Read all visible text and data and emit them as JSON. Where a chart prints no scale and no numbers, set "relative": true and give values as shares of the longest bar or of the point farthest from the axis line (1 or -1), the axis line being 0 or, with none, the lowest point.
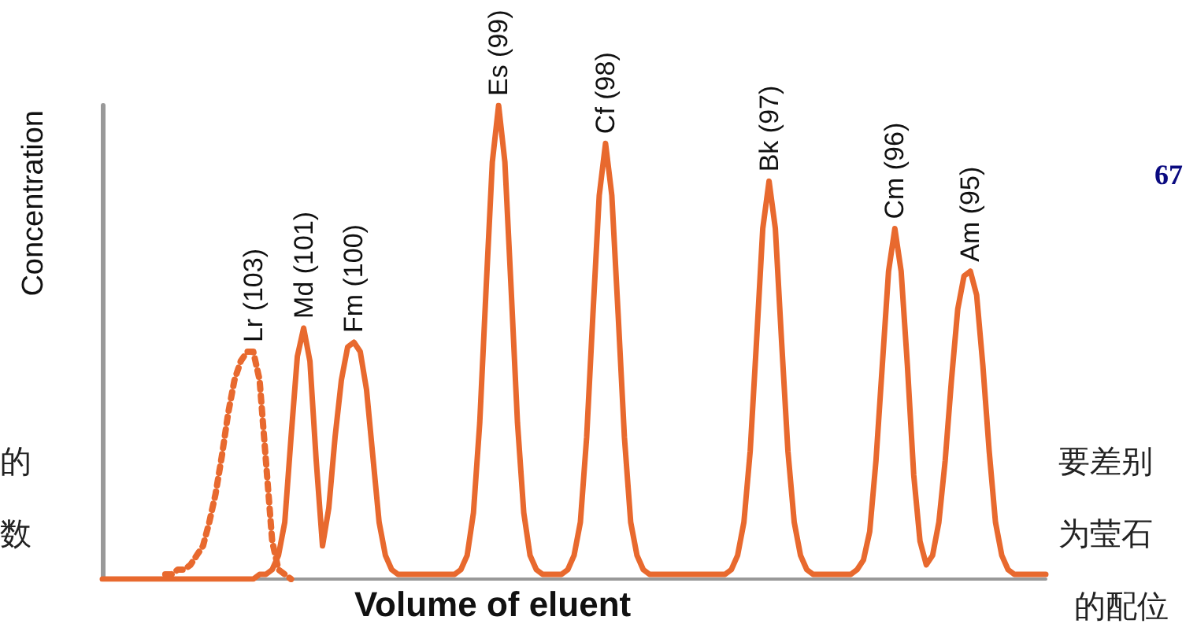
{
  "chart_data": {
    "type": "line",
    "relative": true,
    "xlabel": "Volume of eluent",
    "ylabel": "Concentration",
    "categories": [
      null,
      null,
      null,
      null,
      null,
      null,
      null,
      null,
      null,
      null,
      null,
      null,
      null,
      null,
      null,
      null,
      null,
      null,
      null,
      null,
      null,
      null,
      null,
      null,
      null,
      null,
      null,
      null,
      null,
      null,
      null,
      null,
      null,
      null,
      null,
      null,
      null,
      null,
      null,
      null,
      null,
      null,
      null,
      null,
      null,
      null,
      null,
      null,
      null,
      null,
      null,
      null,
      null,
      null,
      null,
      null,
      null,
      null,
      null,
      null,
      null,
      null,
      null,
      null,
      null,
      null,
      null,
      null,
      null,
      null,
      null,
      null,
      null,
      null,
      null,
      null,
      null,
      null,
      null,
      null,
      null,
      null,
      null,
      null,
      null,
      null,
      null,
      null,
      null,
      null,
      null,
      null,
      null,
      null,
      null,
      null,
      null,
      null,
      null,
      null,
      null,
      null,
      null,
      null,
      null,
      null,
      null,
      null,
      null,
      null,
      null,
      null,
      null,
      null,
      null,
      null,
      null,
      null,
      null,
      null,
      null,
      null,
      null,
      null,
      null,
      null,
      null,
      null,
      null,
      null,
      null,
      null,
      null,
      null,
      null,
      null,
      null,
      null,
      null,
      null,
      null,
      null,
      null,
      null,
      null,
      null,
      null,
      null,
      null,
      null,
      null
    ],
    "series": [
      {
        "color": "#e8692e",
        "line_style": "dotted",
        "values": [
          null,
          null,
          null,
          null,
          null,
          null,
          null,
          null,
          null,
          null,
          0.01,
          0.01,
          0.02,
          0.02,
          0.03,
          0.05,
          0.07,
          0.12,
          0.18,
          0.26,
          0.35,
          0.42,
          0.46,
          0.48,
          0.48,
          0.42,
          0.25,
          0.08,
          0.02,
          0.01,
          0,
          null,
          null,
          null,
          null,
          null,
          null,
          null,
          null,
          null,
          null,
          null,
          null,
          null,
          null,
          null,
          null,
          null,
          null,
          null,
          null,
          null,
          null,
          null,
          null,
          null,
          null,
          null,
          null,
          null,
          null,
          null,
          null,
          null,
          null,
          null,
          null,
          null,
          null,
          null,
          null,
          null,
          null,
          null,
          null,
          null,
          null,
          null,
          null,
          null,
          null,
          null,
          null,
          null,
          null,
          null,
          null,
          null,
          null,
          null,
          null,
          null,
          null,
          null,
          null,
          null,
          null,
          null,
          null,
          null,
          null,
          null,
          null,
          null,
          null,
          null,
          null,
          null,
          null,
          null,
          null,
          null,
          null,
          null,
          null,
          null,
          null,
          null,
          null,
          null,
          null,
          null,
          null,
          null,
          null,
          null,
          null,
          null,
          null,
          null,
          null,
          null,
          null,
          null,
          null,
          null,
          null,
          null,
          null,
          null,
          null,
          null,
          null,
          null,
          null,
          null,
          null,
          null,
          null,
          null,
          null
        ]
      },
      {
        "color": "#e8692e",
        "line_style": "solid",
        "values": [
          0,
          0,
          0,
          0,
          0,
          0,
          0,
          0,
          0,
          0,
          0,
          0,
          0,
          0,
          0,
          0,
          0,
          0,
          0,
          0,
          0,
          0,
          0,
          0,
          0,
          0.01,
          0.01,
          0.02,
          0.05,
          0.12,
          0.3,
          0.47,
          0.53,
          0.46,
          0.25,
          0.07,
          0.15,
          0.3,
          0.42,
          0.49,
          0.5,
          0.48,
          0.4,
          0.26,
          0.12,
          0.05,
          0.02,
          0.01,
          0.01,
          0.01,
          0.01,
          0.01,
          0.01,
          0.01,
          0.01,
          0.01,
          0.01,
          0.02,
          0.05,
          0.14,
          0.33,
          0.61,
          0.88,
          1,
          0.88,
          0.61,
          0.33,
          0.14,
          0.05,
          0.02,
          0.01,
          0.01,
          0.01,
          0.01,
          0.02,
          0.05,
          0.12,
          0.3,
          0.56,
          0.81,
          0.92,
          0.81,
          0.56,
          0.3,
          0.12,
          0.05,
          0.02,
          0.01,
          0.01,
          0.01,
          0.01,
          0.01,
          0.01,
          0.01,
          0.01,
          0.01,
          0.01,
          0.01,
          0.01,
          0.01,
          0.02,
          0.05,
          0.12,
          0.27,
          0.5,
          0.74,
          0.84,
          0.74,
          0.5,
          0.27,
          0.12,
          0.05,
          0.02,
          0.01,
          0.01,
          0.01,
          0.01,
          0.01,
          0.01,
          0.01,
          0.02,
          0.04,
          0.1,
          0.25,
          0.45,
          0.65,
          0.74,
          0.65,
          0.45,
          0.22,
          0.08,
          0.03,
          0.05,
          0.12,
          0.25,
          0.42,
          0.57,
          0.64,
          0.65,
          0.6,
          0.45,
          0.27,
          0.12,
          0.05,
          0.02,
          0.01,
          0.01,
          0.01,
          0.01,
          0.01,
          0.01
        ]
      }
    ],
    "annotations": [
      {
        "text": "Lr (103)",
        "y": 0.48
      },
      {
        "text": "Md (101)",
        "y": 0.53
      },
      {
        "text": "Fm (100)",
        "y": 0.5
      },
      {
        "text": "Es (99)",
        "y": 1
      },
      {
        "text": "Cf (98)",
        "y": 0.92
      },
      {
        "text": "Bk (97)",
        "y": 0.84
      },
      {
        "text": "Cm (96)",
        "y": 0.74
      },
      {
        "text": "Am (95)",
        "y": 0.65
      },
      "的",
      "数",
      "要差别",
      "为莹石",
      "的配位",
      "67"
    ]
  }
}
